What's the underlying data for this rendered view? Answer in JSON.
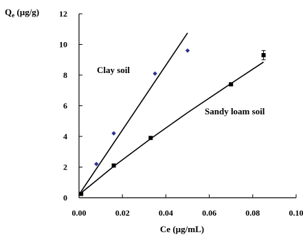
{
  "chart_data": {
    "type": "scatter",
    "xlabel": "Ce (µg/mL)",
    "ylabel_main": "Q",
    "ylabel_sub": "e",
    "ylabel_unit": " (µg/g)",
    "xlim": [
      0,
      0.1
    ],
    "ylim": [
      0,
      12
    ],
    "x_ticks": [
      "0.00",
      "0.02",
      "0.04",
      "0.06",
      "0.08",
      "0.10"
    ],
    "y_ticks": [
      "0",
      "2",
      "4",
      "6",
      "8",
      "10",
      "12"
    ],
    "grid": false,
    "series": [
      {
        "name": "Clay soil",
        "marker": "diamond",
        "marker_color": "#2e3190",
        "points": [
          {
            "x": 0.001,
            "y": 0.3
          },
          {
            "x": 0.008,
            "y": 2.2
          },
          {
            "x": 0.016,
            "y": 4.2
          },
          {
            "x": 0.035,
            "y": 8.1
          },
          {
            "x": 0.05,
            "y": 9.6
          }
        ],
        "fit_line": [
          {
            "x": 0.0,
            "y": 0.2
          },
          {
            "x": 0.05,
            "y": 10.75
          }
        ]
      },
      {
        "name": "Sandy loam soil",
        "marker": "square",
        "marker_color": "#000000",
        "points": [
          {
            "x": 0.001,
            "y": 0.25,
            "err": 0
          },
          {
            "x": 0.016,
            "y": 2.1,
            "err": 0
          },
          {
            "x": 0.033,
            "y": 3.9,
            "err": 0
          },
          {
            "x": 0.07,
            "y": 7.4,
            "err": 0.1
          },
          {
            "x": 0.085,
            "y": 9.3,
            "err": 0.3
          }
        ],
        "fit_line": [
          {
            "x": 0.0,
            "y": 0.2
          },
          {
            "x": 0.016,
            "y": 2.05
          },
          {
            "x": 0.033,
            "y": 3.85
          },
          {
            "x": 0.05,
            "y": 5.55
          },
          {
            "x": 0.07,
            "y": 7.45
          },
          {
            "x": 0.085,
            "y": 8.85
          }
        ]
      }
    ]
  }
}
